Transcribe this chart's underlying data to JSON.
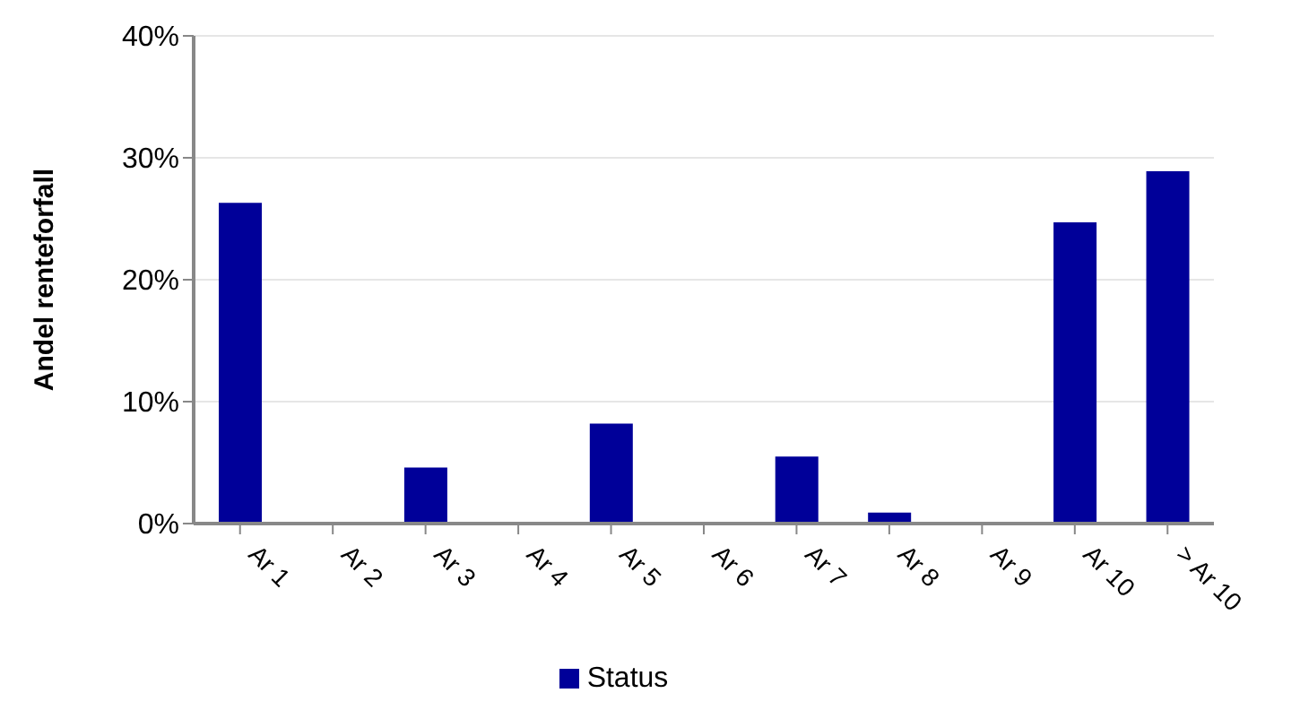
{
  "chart_data": {
    "type": "bar",
    "ylabel": "Andel renteforfall",
    "categories": [
      "Ar 1",
      "Ar 2",
      "Ar 3",
      "Ar 4",
      "Ar 5",
      "Ar 6",
      "Ar 7",
      "Ar 8",
      "Ar 9",
      "Ar 10",
      "> Ar 10"
    ],
    "series": [
      {
        "name": "Status",
        "color": "#000099",
        "values": [
          26.3,
          0,
          4.6,
          0,
          8.2,
          0,
          5.5,
          0.9,
          0,
          24.7,
          28.9
        ]
      }
    ],
    "ylim": [
      0,
      40
    ],
    "yticks": [
      {
        "value": 0,
        "label": "0%"
      },
      {
        "value": 10,
        "label": "10%"
      },
      {
        "value": 20,
        "label": "20%"
      },
      {
        "value": 30,
        "label": "30%"
      },
      {
        "value": 40,
        "label": "40%"
      }
    ],
    "grid": "y",
    "legend": "bottom"
  }
}
